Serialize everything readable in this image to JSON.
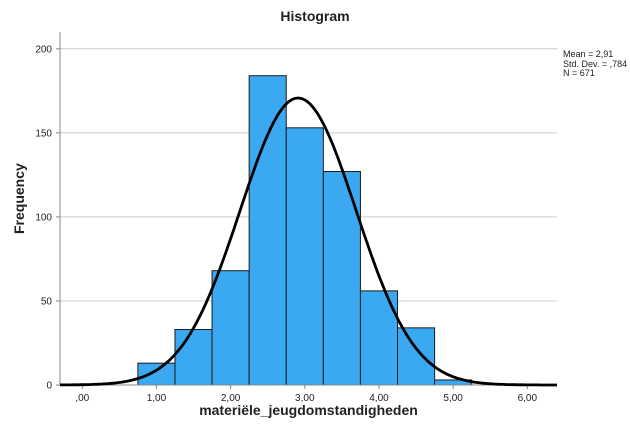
{
  "chart_data": {
    "type": "histogram",
    "title": "Histogram",
    "xlabel": "materiële_jeugdomstandigheden",
    "ylabel": "Frequency",
    "xlim": [
      -0.3,
      6.4
    ],
    "ylim": [
      0,
      210
    ],
    "x_ticks": [
      0,
      1,
      2,
      3,
      4,
      5,
      6
    ],
    "x_tick_labels": [
      ",00",
      "1,00",
      "2,00",
      "3,00",
      "4,00",
      "5,00",
      "6,00"
    ],
    "y_ticks": [
      0,
      50,
      100,
      150,
      200
    ],
    "y_tick_labels": [
      "0",
      "50",
      "100",
      "150",
      "200"
    ],
    "grid": true,
    "bins": [
      {
        "start": 0.75,
        "end": 1.25,
        "count": 13
      },
      {
        "start": 1.25,
        "end": 1.75,
        "count": 33
      },
      {
        "start": 1.75,
        "end": 2.25,
        "count": 68
      },
      {
        "start": 2.25,
        "end": 2.75,
        "count": 184
      },
      {
        "start": 2.75,
        "end": 3.25,
        "count": 153
      },
      {
        "start": 3.25,
        "end": 3.75,
        "count": 127
      },
      {
        "start": 3.75,
        "end": 4.25,
        "count": 56
      },
      {
        "start": 4.25,
        "end": 4.75,
        "count": 34
      },
      {
        "start": 4.75,
        "end": 5.25,
        "count": 3
      }
    ],
    "normal_curve": {
      "mean": 2.91,
      "sd": 0.784,
      "n": 671,
      "bin_width": 0.5
    },
    "stats_text": [
      "Mean = 2,91",
      "Std. Dev. = ,784",
      "N = 671"
    ],
    "bar_color": "#3aa9f2",
    "bar_edge_color": "#1a1a1a",
    "curve_color": "#000000",
    "grid_color": "#cccccc"
  }
}
